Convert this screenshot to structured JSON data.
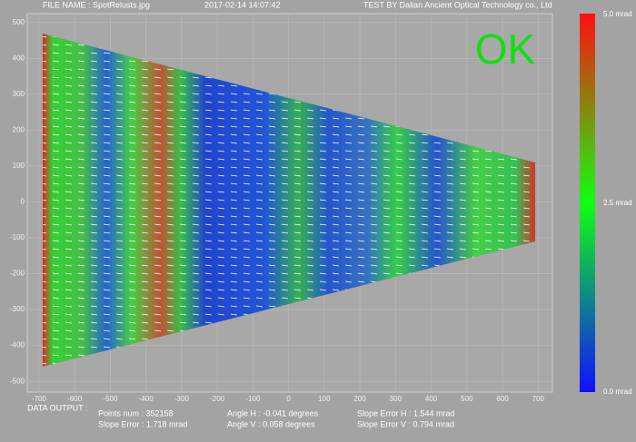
{
  "header": {
    "file_name": "FILE NAME : SpotRelusts.jpg",
    "timestamp": "2017-02-14 14:07:42",
    "tester": "TEST BY Dalian Ancient Optical Technology co., Ltd"
  },
  "status": "OK",
  "plot": {
    "xlim": [
      -733,
      740
    ],
    "ylim": [
      -530,
      525
    ],
    "xticks": [
      -700,
      -600,
      -500,
      -400,
      -300,
      -200,
      -100,
      0,
      100,
      200,
      300,
      400,
      500,
      600,
      700
    ],
    "yticks": [
      -500,
      -400,
      -300,
      -200,
      -100,
      0,
      100,
      200,
      300,
      400,
      500
    ],
    "grid": true
  },
  "colorbar": {
    "labels": [
      "5.0 mrad",
      "2.5 mrad",
      "0.0 mrad"
    ]
  },
  "output": {
    "title": "DATA OUTPUT :",
    "points": "Points num : 352158",
    "slope_error": "Slope Error : 1.718 mrad",
    "angle_h": "Angle H : -0.041 degrees",
    "angle_v": "Angle V : 0.058 degrees",
    "slope_error_h": "Slope Error H : 1.544 mrad",
    "slope_error_v": "Slope Error V : 0.794 mrad"
  }
}
